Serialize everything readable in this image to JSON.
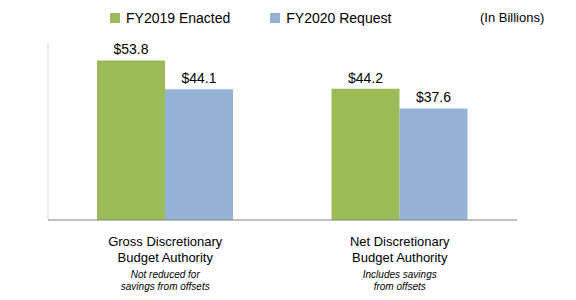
{
  "chart_data": {
    "type": "bar",
    "annotation": "(In Billions)",
    "categories": [
      "Gross Discretionary Budget Authority",
      "Net Discretionary Budget Authority"
    ],
    "category_notes": [
      "Not reduced for savings from offsets",
      "Includes savings from offsets"
    ],
    "series": [
      {
        "name": "FY2019 Enacted",
        "color": "#9bbb59",
        "values": [
          53.8,
          44.2
        ],
        "value_labels": [
          "$53.8",
          "$44.2"
        ]
      },
      {
        "name": "FY2020 Request",
        "color": "#95b3d7",
        "values": [
          44.1,
          37.6
        ],
        "value_labels": [
          "$44.1",
          "$37.6"
        ]
      }
    ],
    "ylim": [
      0,
      60
    ],
    "data_labels": true,
    "tick_labels": "x",
    "legend": "top",
    "grid": false
  }
}
